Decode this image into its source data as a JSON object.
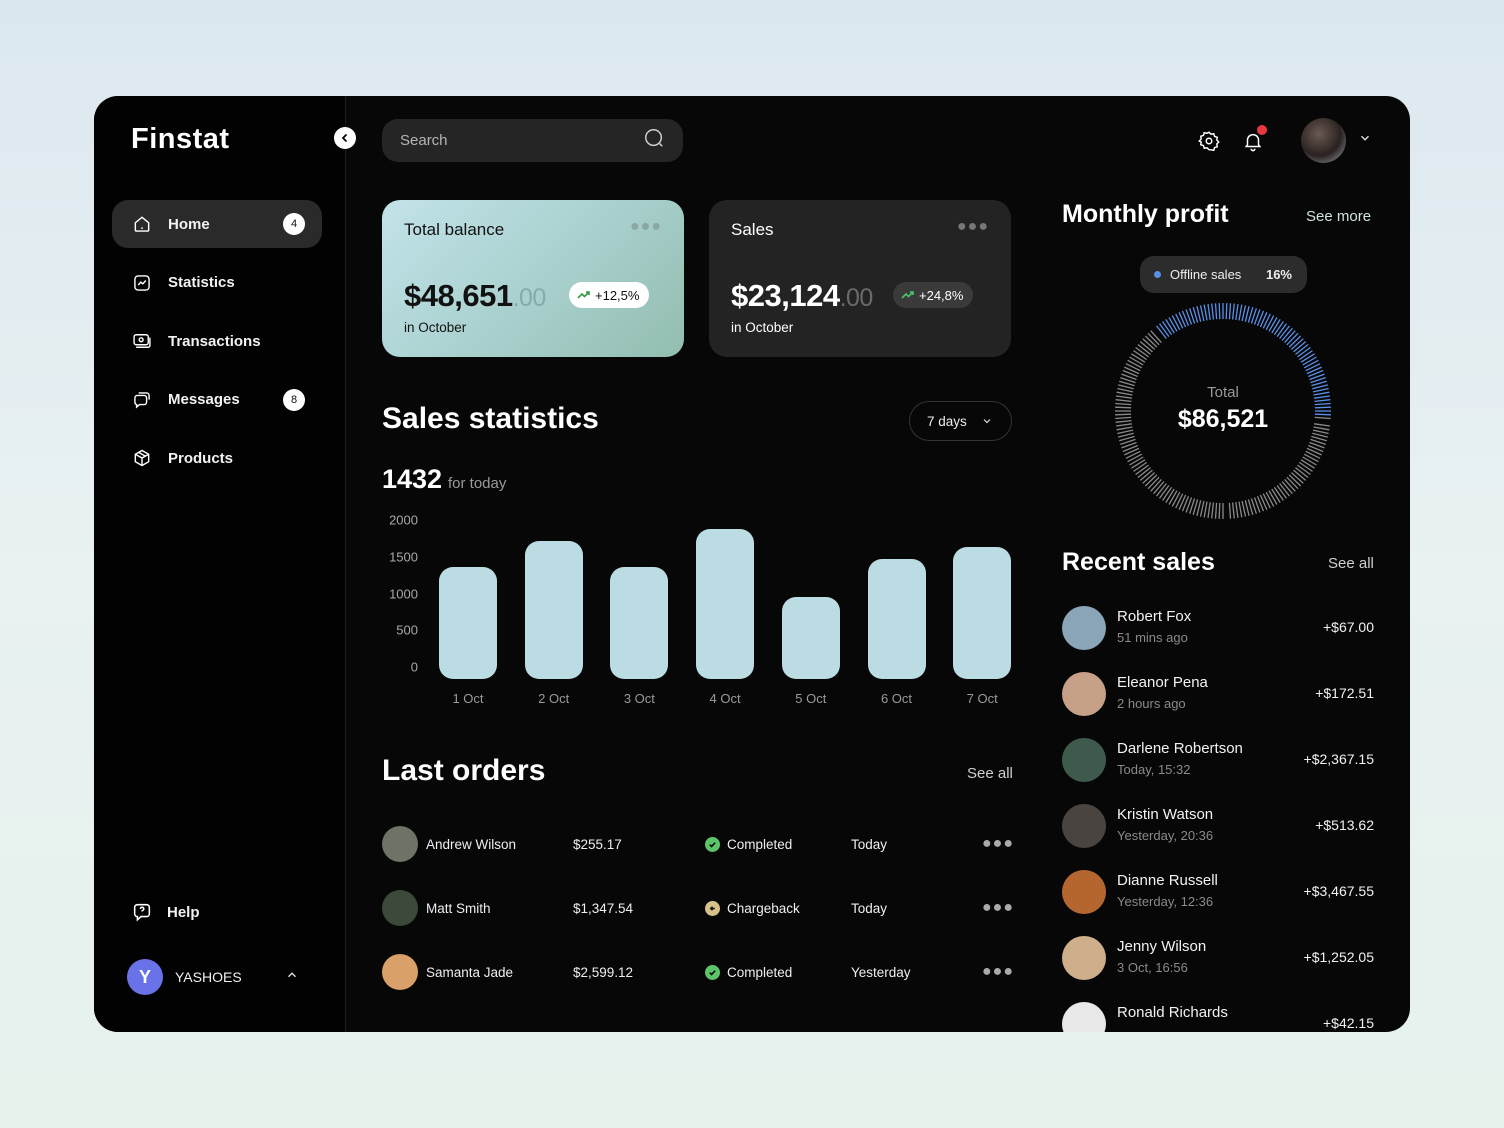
{
  "app": {
    "logo": "Finstat"
  },
  "sidebar": {
    "items": [
      {
        "label": "Home",
        "badge": "4",
        "active": true
      },
      {
        "label": "Statistics",
        "badge": null
      },
      {
        "label": "Transactions",
        "badge": null
      },
      {
        "label": "Messages",
        "badge": "8"
      },
      {
        "label": "Products",
        "badge": null
      }
    ],
    "help_label": "Help",
    "account": {
      "initial": "Y",
      "name": "YASHOES",
      "color": "#6a72e8"
    }
  },
  "topbar": {
    "search_placeholder": "Search",
    "notification_dot_color": "#e8383f"
  },
  "cards": {
    "balance": {
      "title": "Total balance",
      "amount": "$48,651",
      "cents": ".00",
      "change": "+12,5%",
      "period": "in October"
    },
    "sales": {
      "title": "Sales",
      "amount": "$23,124",
      "cents": ".00",
      "change": "+24,8%",
      "period": "in October"
    }
  },
  "sales_statistics": {
    "title": "Sales statistics",
    "range_select": "7 days",
    "today_value": "1432",
    "today_label": "for today"
  },
  "chart_data": {
    "type": "bar",
    "title": "Sales statistics",
    "categories": [
      "1 Oct",
      "2 Oct",
      "3 Oct",
      "4 Oct",
      "5 Oct",
      "6 Oct",
      "7 Oct"
    ],
    "values": [
      1530,
      1880,
      1530,
      2050,
      1120,
      1630,
      1790
    ],
    "y_ticks": [
      "2000",
      "1500",
      "1000",
      "500",
      "0"
    ],
    "ylim": [
      0,
      2000
    ],
    "xlabel": "",
    "ylabel": "",
    "bar_color": "#bbdce2",
    "grid": false
  },
  "orders": {
    "title": "Last orders",
    "see_all": "See all",
    "rows": [
      {
        "name": "Andrew Wilson",
        "amount": "$255.17",
        "status": "Completed",
        "status_color": "#5cc46a",
        "date": "Today",
        "avatar": "#6d7366"
      },
      {
        "name": "Matt Smith",
        "amount": "$1,347.54",
        "status": "Chargeback",
        "status_color": "#d8c08a",
        "date": "Today",
        "avatar": "#3b4a3a"
      },
      {
        "name": "Samanta Jade",
        "amount": "$2,599.12",
        "status": "Completed",
        "status_color": "#5cc46a",
        "date": "Yesterday",
        "avatar": "#d9a06a"
      }
    ]
  },
  "monthly_profit": {
    "title": "Monthly profit",
    "see_more": "See more",
    "tooltip": {
      "label": "Offline sales",
      "percent": "16%",
      "color": "#5b8fe6"
    },
    "total_label": "Total",
    "total_value": "$86,521"
  },
  "recent_sales": {
    "title": "Recent sales",
    "see_all": "See all",
    "rows": [
      {
        "name": "Robert Fox",
        "time": "51 mins ago",
        "amount": "+$67.00",
        "avatar": "#8aa5b8"
      },
      {
        "name": "Eleanor Pena",
        "time": "2 hours ago",
        "amount": "+$172.51",
        "avatar": "#c7a088"
      },
      {
        "name": "Darlene Robertson",
        "time": "Today, 15:32",
        "amount": "+$2,367.15",
        "avatar": "#3e5a4d"
      },
      {
        "name": "Kristin Watson",
        "time": "Yesterday, 20:36",
        "amount": "+$513.62",
        "avatar": "#4a4440"
      },
      {
        "name": "Dianne Russell",
        "time": "Yesterday, 12:36",
        "amount": "+$3,467.55",
        "avatar": "#b5662e"
      },
      {
        "name": "Jenny Wilson",
        "time": "3 Oct, 16:56",
        "amount": "+$1,252.05",
        "avatar": "#cfae8c"
      },
      {
        "name": "Ronald Richards",
        "time": "",
        "amount": "+$42.15",
        "avatar": "#e8e8e8"
      }
    ]
  }
}
